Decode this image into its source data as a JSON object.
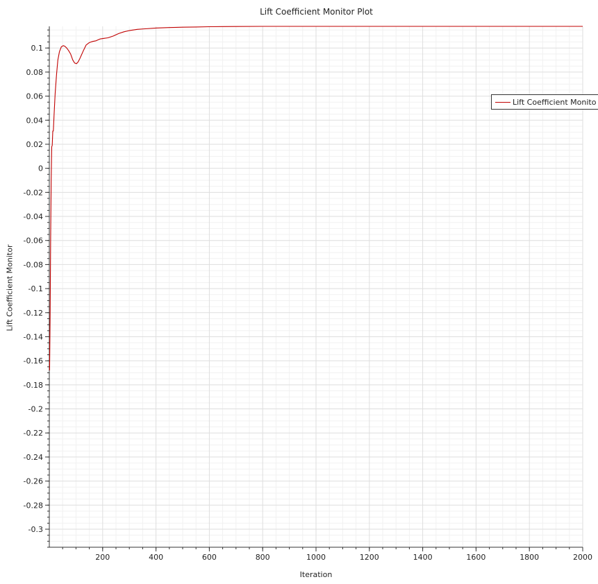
{
  "chart_data": {
    "type": "line",
    "title": "Lift Coefficient Monitor Plot",
    "xlabel": "Iteration",
    "ylabel": "Lift Coefficient Monitor",
    "xlim": [
      0,
      2000
    ],
    "ylim": [
      -0.315,
      0.118
    ],
    "grid": true,
    "legend_position": "top-right",
    "xticks": [
      200,
      400,
      600,
      800,
      1000,
      1200,
      1400,
      1600,
      1800,
      2000
    ],
    "yticks": [
      0.1,
      0.08,
      0.06,
      0.04,
      0.02,
      0,
      -0.02,
      -0.04,
      -0.06,
      -0.08,
      -0.1,
      -0.12,
      -0.14,
      -0.16,
      -0.18,
      -0.2,
      -0.22,
      -0.24,
      -0.26,
      -0.28,
      -0.3
    ],
    "ytick_labels": [
      "0.1",
      "0.08",
      "0.06",
      "0.04",
      "0.02",
      "0",
      "-0.02",
      "-0.04",
      "-0.06",
      "-0.08",
      "-0.1",
      "-0.12",
      "-0.14",
      "-0.16",
      "-0.18",
      "-0.2",
      "-0.22",
      "-0.24",
      "-0.26",
      "-0.28",
      "-0.3"
    ],
    "series": [
      {
        "name": "Lift Coefficient Monito",
        "color": "#c00000",
        "x": [
          1,
          3,
          5,
          7,
          9,
          11,
          13,
          15,
          18,
          22,
          27,
          32,
          38,
          45,
          52,
          58,
          65,
          72,
          80,
          88,
          95,
          102,
          108,
          114,
          120,
          128,
          138,
          150,
          163,
          175,
          190,
          205,
          220,
          240,
          260,
          280,
          300,
          330,
          360,
          400,
          450,
          500,
          550,
          600,
          650,
          700,
          800,
          1000,
          1200,
          1400,
          1600,
          1800,
          2000
        ],
        "y": [
          -0.168,
          -0.12,
          -0.06,
          -0.01,
          0.018,
          0.019,
          0.031,
          0.031,
          0.045,
          0.062,
          0.078,
          0.09,
          0.097,
          0.101,
          0.102,
          0.1015,
          0.1,
          0.098,
          0.095,
          0.09,
          0.0875,
          0.087,
          0.0885,
          0.091,
          0.094,
          0.098,
          0.1025,
          0.1045,
          0.1055,
          0.106,
          0.1075,
          0.108,
          0.1085,
          0.11,
          0.112,
          0.1135,
          0.1145,
          0.1155,
          0.116,
          0.1166,
          0.117,
          0.1173,
          0.1175,
          0.1177,
          0.1178,
          0.1179,
          0.118,
          0.118,
          0.118,
          0.118,
          0.118,
          0.118,
          0.118
        ]
      }
    ]
  }
}
